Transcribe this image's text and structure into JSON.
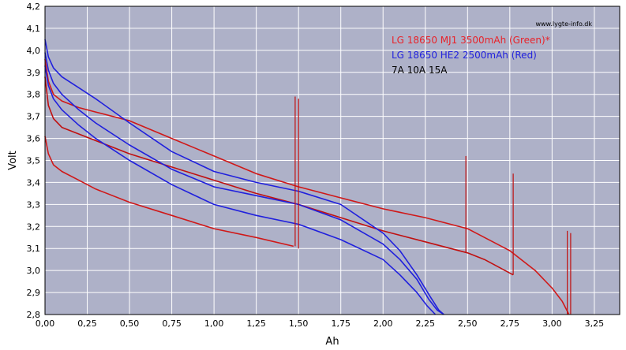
{
  "chart_data": {
    "type": "line",
    "title": "",
    "xlabel": "Ah",
    "ylabel": "Volt",
    "xlim": [
      0,
      3.4
    ],
    "ylim": [
      2.8,
      4.2
    ],
    "grid": true,
    "legend_placement": "top-right",
    "plot_background": "#aeb1c8",
    "x_ticks": [
      "0,00",
      "0,25",
      "0,50",
      "0,75",
      "1,00",
      "1,25",
      "1,50",
      "1,75",
      "2,00",
      "2,25",
      "2,50",
      "2,75",
      "3,00",
      "3,25"
    ],
    "y_ticks": [
      "2,8",
      "2,9",
      "3,0",
      "3,1",
      "3,2",
      "3,3",
      "3,4",
      "3,5",
      "3,6",
      "3,7",
      "3,8",
      "3,9",
      "4,0",
      "4,1",
      "4,2"
    ],
    "watermark": "www.lygte-info.dk",
    "legend": [
      {
        "text": "LG 18650 MJ1 3500mAh (Green)*",
        "color": "#e8232a"
      },
      {
        "text": "LG 18650 HE2 2500mAh (Red)",
        "color": "#2222dd"
      },
      {
        "text": "7A 10A 15A",
        "color": "#000000"
      }
    ],
    "series": [
      {
        "name": "LG 18650 MJ1 3500mAh (Green)*",
        "color": "#d01818",
        "x": [
          0.0,
          0.02,
          0.05,
          0.1,
          0.2,
          0.3,
          0.5,
          0.75,
          1.0,
          1.25,
          1.5,
          1.75,
          2.0,
          2.25,
          2.5,
          2.75,
          2.9,
          3.0,
          3.06,
          3.1
        ],
        "y": [
          3.96,
          3.86,
          3.8,
          3.77,
          3.74,
          3.72,
          3.68,
          3.6,
          3.52,
          3.44,
          3.38,
          3.33,
          3.28,
          3.24,
          3.19,
          3.09,
          3.0,
          2.92,
          2.86,
          2.8
        ]
      },
      {
        "name": "",
        "color": "#c01010",
        "x": [
          0.0,
          0.02,
          0.05,
          0.1,
          0.2,
          0.3,
          0.5,
          0.75,
          1.0,
          1.25,
          1.5,
          1.75,
          2.0,
          2.25,
          2.5,
          2.6,
          2.77
        ],
        "y": [
          3.88,
          3.75,
          3.69,
          3.65,
          3.62,
          3.59,
          3.53,
          3.47,
          3.41,
          3.35,
          3.3,
          3.24,
          3.18,
          3.13,
          3.08,
          3.05,
          2.98
        ]
      },
      {
        "name": "",
        "color": "#d01818",
        "x": [
          0.0,
          0.02,
          0.05,
          0.1,
          0.2,
          0.3,
          0.5,
          0.75,
          1.0,
          1.25,
          1.47
        ],
        "y": [
          3.61,
          3.53,
          3.48,
          3.45,
          3.41,
          3.37,
          3.31,
          3.25,
          3.19,
          3.15,
          3.11
        ]
      },
      {
        "name": "LG 18650 HE2 2500mAh (Red)",
        "color": "#2020dd",
        "x": [
          0.0,
          0.02,
          0.05,
          0.1,
          0.2,
          0.3,
          0.5,
          0.75,
          1.0,
          1.25,
          1.5,
          1.75,
          2.0,
          2.1,
          2.2,
          2.28,
          2.33,
          2.36
        ],
        "y": [
          4.05,
          3.97,
          3.92,
          3.88,
          3.83,
          3.78,
          3.67,
          3.54,
          3.45,
          3.4,
          3.36,
          3.3,
          3.17,
          3.09,
          2.98,
          2.88,
          2.82,
          2.8
        ]
      },
      {
        "name": "",
        "color": "#2020dd",
        "x": [
          0.0,
          0.02,
          0.05,
          0.1,
          0.2,
          0.3,
          0.5,
          0.75,
          1.0,
          1.25,
          1.5,
          1.75,
          2.0,
          2.1,
          2.2,
          2.27,
          2.32,
          2.36
        ],
        "y": [
          3.99,
          3.91,
          3.85,
          3.8,
          3.73,
          3.67,
          3.57,
          3.46,
          3.38,
          3.34,
          3.3,
          3.23,
          3.12,
          3.05,
          2.96,
          2.87,
          2.82,
          2.8
        ]
      },
      {
        "name": "",
        "color": "#2020dd",
        "x": [
          0.0,
          0.02,
          0.05,
          0.1,
          0.2,
          0.3,
          0.5,
          0.75,
          1.0,
          1.25,
          1.5,
          1.75,
          2.0,
          2.1,
          2.2,
          2.26,
          2.31
        ],
        "y": [
          3.93,
          3.84,
          3.78,
          3.73,
          3.66,
          3.6,
          3.5,
          3.39,
          3.3,
          3.25,
          3.21,
          3.14,
          3.05,
          2.98,
          2.9,
          2.84,
          2.8
        ]
      }
    ],
    "spikes": [
      {
        "x": 1.48,
        "y_low": 3.11,
        "y_high": 3.79,
        "color": "#c01010"
      },
      {
        "x": 1.5,
        "y_low": 3.1,
        "y_high": 3.78,
        "color": "#c01010"
      },
      {
        "x": 2.49,
        "y_low": 3.08,
        "y_high": 3.52,
        "color": "#c01010"
      },
      {
        "x": 2.77,
        "y_low": 2.98,
        "y_high": 3.44,
        "color": "#c01010"
      },
      {
        "x": 3.09,
        "y_low": 2.8,
        "y_high": 3.18,
        "color": "#c01010"
      },
      {
        "x": 3.11,
        "y_low": 2.8,
        "y_high": 3.17,
        "color": "#c01010"
      }
    ]
  }
}
